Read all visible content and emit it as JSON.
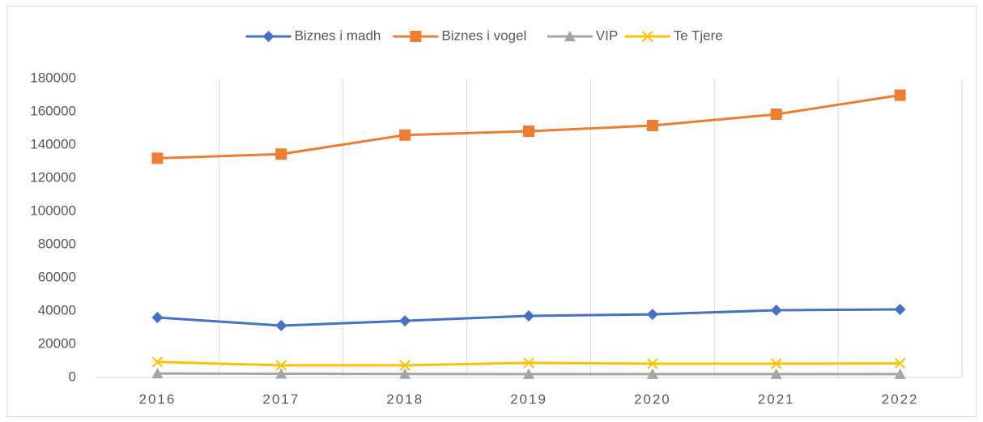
{
  "chart_data": {
    "type": "line",
    "categories": [
      "2016",
      "2017",
      "2018",
      "2019",
      "2020",
      "2021",
      "2022"
    ],
    "series": [
      {
        "name": "Biznes i madh",
        "color": "#4472c4",
        "marker": "diamond",
        "values": [
          36100,
          31200,
          34100,
          37100,
          38000,
          40500,
          41000
        ]
      },
      {
        "name": "Biznes i vogel",
        "color": "#ed7d31",
        "marker": "square",
        "values": [
          132000,
          134500,
          146000,
          148300,
          151700,
          158500,
          170000
        ]
      },
      {
        "name": "VIP",
        "color": "#a5a5a5",
        "marker": "triangle",
        "values": [
          2400,
          2200,
          2100,
          2000,
          2000,
          2000,
          2000
        ]
      },
      {
        "name": "Te Tjere",
        "color": "#ffc000",
        "marker": "x",
        "values": [
          9300,
          7300,
          7300,
          8800,
          8300,
          8300,
          8500
        ]
      }
    ],
    "ylim": [
      0,
      180000
    ],
    "yticks": [
      0,
      20000,
      40000,
      60000,
      80000,
      100000,
      120000,
      140000,
      160000,
      180000
    ],
    "legend": "top"
  }
}
